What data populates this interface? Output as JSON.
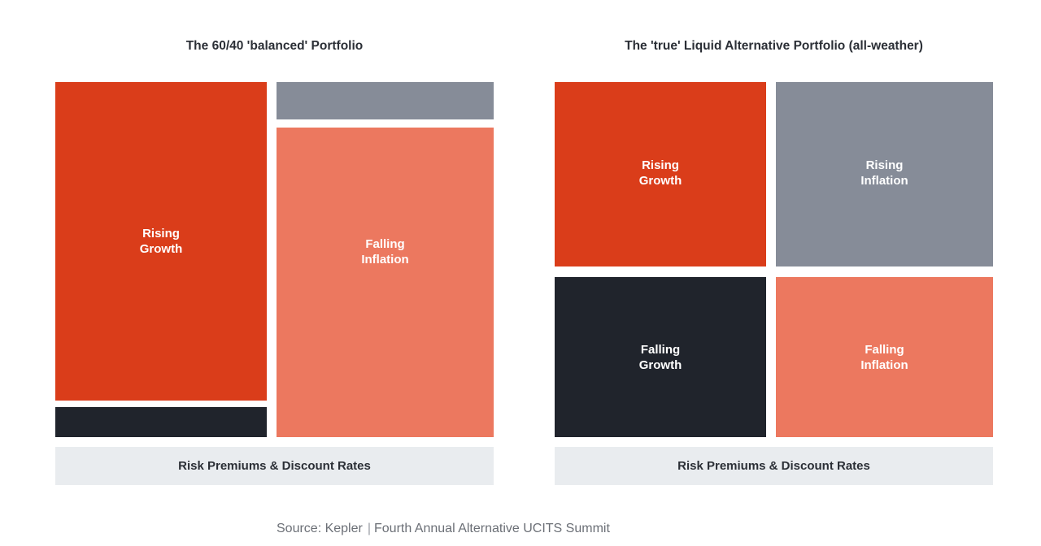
{
  "colors": {
    "rising_growth": "#da3d1a",
    "falling_growth": "#20242c",
    "rising_inflation": "#868c98",
    "falling_inflation": "#ec785f",
    "base": "#e9ecef"
  },
  "left": {
    "title": "The 60/40 'balanced' Portfolio",
    "rising_growth": [
      "Rising",
      "Growth"
    ],
    "falling_inflation": [
      "Falling",
      "Inflation"
    ],
    "base_label": "Risk Premiums & Discount Rates"
  },
  "right": {
    "title": "The 'true' Liquid Alternative Portfolio (all-weather)",
    "rising_growth": [
      "Rising",
      "Growth"
    ],
    "rising_inflation": [
      "Rising",
      "Inflation"
    ],
    "falling_growth": [
      "Falling",
      "Growth"
    ],
    "falling_inflation": [
      "Falling",
      "Inflation"
    ],
    "base_label": "Risk Premiums & Discount Rates"
  },
  "source": {
    "prefix": "Source: Kepler",
    "separator": "|",
    "event": "Fourth Annual Alternative UCITS Summit"
  }
}
